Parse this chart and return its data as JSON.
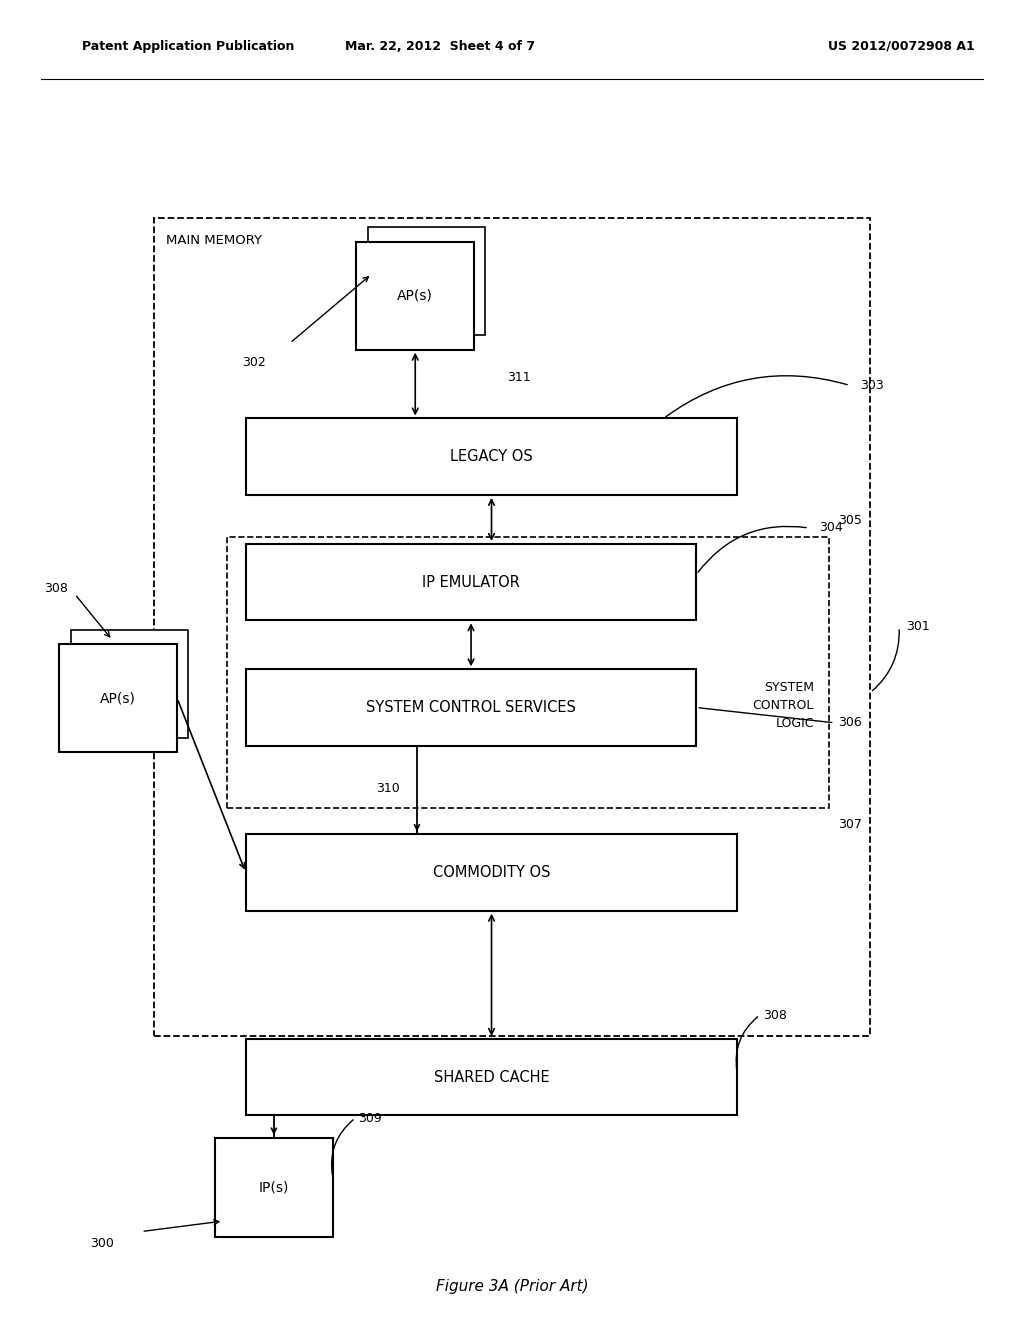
{
  "bg_color": "#ffffff",
  "header_left": "Patent Application Publication",
  "header_mid": "Mar. 22, 2012  Sheet 4 of 7",
  "header_right": "US 2012/0072908 A1",
  "caption": "Figure 3A (Prior Art)",
  "main_memory_label": "MAIN MEMORY",
  "legacy_os_label": "LEGACY OS",
  "ip_emulator_label": "IP EMULATOR",
  "sys_ctrl_svc_label": "SYSTEM CONTROL SERVICES",
  "sys_ctrl_logic_label": "SYSTEM\nCONTROL\nLOGIC",
  "commodity_os_label": "COMMODITY OS",
  "shared_cache_label": "SHARED CACHE",
  "ap_top_label": "AP(s)",
  "ap_left_label": "AP(s)",
  "ip_label": "IP(s)",
  "ref_300": "300",
  "ref_301": "301",
  "ref_302": "302",
  "ref_303": "303",
  "ref_304": "304",
  "ref_305": "305",
  "ref_306": "306",
  "ref_307": "307",
  "ref_308_cache": "308",
  "ref_308_ap": "308",
  "ref_309": "309",
  "ref_310": "310",
  "ref_311": "311"
}
